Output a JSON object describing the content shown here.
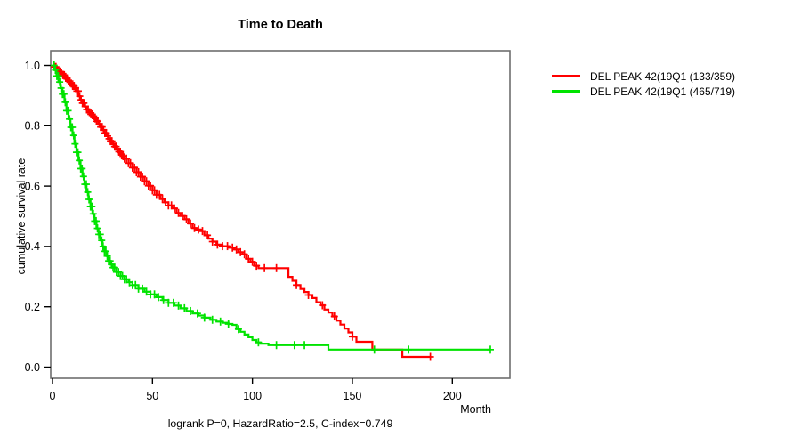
{
  "title": "Time to Death",
  "caption": "logrank P=0, HazardRatio=2.5, C-index=0.749",
  "colors": {
    "red": "#ff0000",
    "green": "#00e300",
    "axis_box": "#6e6e6e",
    "tick": "#000000",
    "text": "#000000"
  },
  "legend": {
    "items": [
      {
        "label": "DEL PEAK 42(19Q1 (133/359)",
        "color": "#ff0000"
      },
      {
        "label": "DEL PEAK 42(19Q1 (465/719)",
        "color": "#00e300"
      }
    ]
  },
  "chart_data": {
    "type": "line",
    "subtype": "kaplan-meier-step-survival",
    "title": "Time to Death",
    "xlabel": "Month",
    "ylabel": "cumulative survival rate",
    "xlim": [
      0,
      220
    ],
    "ylim": [
      0.0,
      1.0
    ],
    "grid": false,
    "legend_position": "right-outside",
    "x_ticks": [
      0,
      50,
      100,
      150,
      200
    ],
    "x_tick_labels": [
      "0",
      "50",
      "100",
      "150",
      "200"
    ],
    "y_ticks": [
      0.0,
      0.2,
      0.4,
      0.6,
      0.8,
      1.0
    ],
    "y_tick_labels": [
      "0.0",
      "0.2",
      "0.4",
      "0.6",
      "0.8",
      "1.0"
    ],
    "series": [
      {
        "name": "DEL PEAK 42(19Q1 (133/359)",
        "color": "#ff0000",
        "events_over_total": "133/359",
        "steps": [
          [
            0,
            1.0
          ],
          [
            1,
            0.995
          ],
          [
            2,
            0.985
          ],
          [
            3,
            0.98
          ],
          [
            4,
            0.975
          ],
          [
            5,
            0.968
          ],
          [
            6,
            0.962
          ],
          [
            7,
            0.955
          ],
          [
            8,
            0.948
          ],
          [
            9,
            0.94
          ],
          [
            10,
            0.932
          ],
          [
            11,
            0.925
          ],
          [
            12,
            0.915
          ],
          [
            13,
            0.898
          ],
          [
            14,
            0.886
          ],
          [
            15,
            0.875
          ],
          [
            16,
            0.864
          ],
          [
            17,
            0.854
          ],
          [
            18,
            0.845
          ],
          [
            19,
            0.838
          ],
          [
            20,
            0.832
          ],
          [
            21,
            0.824
          ],
          [
            22,
            0.815
          ],
          [
            23,
            0.806
          ],
          [
            24,
            0.796
          ],
          [
            25,
            0.786
          ],
          [
            26,
            0.776
          ],
          [
            27,
            0.766
          ],
          [
            28,
            0.757
          ],
          [
            29,
            0.749
          ],
          [
            30,
            0.74
          ],
          [
            31,
            0.731
          ],
          [
            32,
            0.722
          ],
          [
            33,
            0.714
          ],
          [
            34,
            0.706
          ],
          [
            35,
            0.699
          ],
          [
            36,
            0.691
          ],
          [
            38,
            0.676
          ],
          [
            40,
            0.661
          ],
          [
            42,
            0.646
          ],
          [
            44,
            0.631
          ],
          [
            46,
            0.616
          ],
          [
            48,
            0.601
          ],
          [
            50,
            0.586
          ],
          [
            52,
            0.571
          ],
          [
            54,
            0.557
          ],
          [
            56,
            0.546
          ],
          [
            58,
            0.536
          ],
          [
            60,
            0.526
          ],
          [
            62,
            0.511
          ],
          [
            64,
            0.501
          ],
          [
            66,
            0.49
          ],
          [
            68,
            0.476
          ],
          [
            70,
            0.461
          ],
          [
            72,
            0.456
          ],
          [
            74,
            0.451
          ],
          [
            76,
            0.437
          ],
          [
            78,
            0.426
          ],
          [
            80,
            0.416
          ],
          [
            82,
            0.406
          ],
          [
            85,
            0.401
          ],
          [
            88,
            0.396
          ],
          [
            91,
            0.39
          ],
          [
            93,
            0.381
          ],
          [
            95,
            0.374
          ],
          [
            97,
            0.359
          ],
          [
            99,
            0.349
          ],
          [
            101,
            0.336
          ],
          [
            103,
            0.328
          ],
          [
            118,
            0.299
          ],
          [
            120,
            0.286
          ],
          [
            122,
            0.272
          ],
          [
            124,
            0.259
          ],
          [
            126,
            0.249
          ],
          [
            128,
            0.239
          ],
          [
            130,
            0.229
          ],
          [
            132,
            0.215
          ],
          [
            134,
            0.205
          ],
          [
            136,
            0.191
          ],
          [
            138,
            0.181
          ],
          [
            140,
            0.168
          ],
          [
            142,
            0.154
          ],
          [
            144,
            0.141
          ],
          [
            146,
            0.128
          ],
          [
            148,
            0.115
          ],
          [
            150,
            0.101
          ],
          [
            152,
            0.084
          ],
          [
            160,
            0.058
          ],
          [
            175,
            0.034
          ],
          [
            189,
            0.034
          ]
        ],
        "censor_months": [
          1,
          1.7,
          2.4,
          3.1,
          3.8,
          4.5,
          5.2,
          5.9,
          6.6,
          7.3,
          8,
          8.7,
          9.4,
          10.1,
          10.8,
          11.5,
          12.2,
          12.9,
          13.6,
          14.3,
          15,
          15.7,
          16.4,
          17.1,
          17.8,
          18.5,
          19.2,
          19.9,
          20.6,
          21.3,
          22,
          22.7,
          23.4,
          24.1,
          24.8,
          25.5,
          26.2,
          26.9,
          27.6,
          28.3,
          29,
          29.7,
          30.4,
          31.1,
          31.8,
          32.5,
          33.2,
          33.9,
          34.6,
          35.3,
          36,
          37,
          38,
          39,
          40,
          41,
          42,
          43,
          44,
          45,
          46,
          47,
          48,
          49,
          50,
          51,
          52,
          53.5,
          55,
          56.5,
          58,
          59.5,
          61,
          63,
          65,
          67,
          69,
          71,
          73,
          75,
          77.5,
          80,
          82.5,
          85,
          87.5,
          90,
          92,
          94,
          96,
          98,
          100,
          102,
          106,
          112,
          122,
          128,
          135,
          141,
          150,
          189
        ]
      },
      {
        "name": "DEL PEAK 42(19Q1 (465/719)",
        "color": "#00e300",
        "events_over_total": "465/719",
        "steps": [
          [
            0,
            1.0
          ],
          [
            1,
            0.985
          ],
          [
            2,
            0.965
          ],
          [
            3,
            0.945
          ],
          [
            4,
            0.925
          ],
          [
            5,
            0.905
          ],
          [
            6,
            0.878
          ],
          [
            7,
            0.85
          ],
          [
            8,
            0.822
          ],
          [
            9,
            0.795
          ],
          [
            10,
            0.768
          ],
          [
            11,
            0.74
          ],
          [
            12,
            0.712
          ],
          [
            13,
            0.685
          ],
          [
            14,
            0.658
          ],
          [
            15,
            0.632
          ],
          [
            16,
            0.606
          ],
          [
            17,
            0.58
          ],
          [
            18,
            0.556
          ],
          [
            19,
            0.532
          ],
          [
            20,
            0.508
          ],
          [
            21,
            0.484
          ],
          [
            22,
            0.46
          ],
          [
            23,
            0.44
          ],
          [
            24,
            0.42
          ],
          [
            25,
            0.4
          ],
          [
            26,
            0.384
          ],
          [
            27,
            0.368
          ],
          [
            28,
            0.352
          ],
          [
            29,
            0.34
          ],
          [
            30,
            0.33
          ],
          [
            32,
            0.315
          ],
          [
            34,
            0.302
          ],
          [
            36,
            0.291
          ],
          [
            38,
            0.281
          ],
          [
            40,
            0.272
          ],
          [
            43,
            0.26
          ],
          [
            46,
            0.25
          ],
          [
            49,
            0.241
          ],
          [
            52,
            0.232
          ],
          [
            55,
            0.222
          ],
          [
            58,
            0.213
          ],
          [
            61,
            0.204
          ],
          [
            64,
            0.195
          ],
          [
            67,
            0.186
          ],
          [
            70,
            0.178
          ],
          [
            73,
            0.171
          ],
          [
            76,
            0.164
          ],
          [
            79,
            0.157
          ],
          [
            82,
            0.151
          ],
          [
            85,
            0.147
          ],
          [
            88,
            0.143
          ],
          [
            90,
            0.14
          ],
          [
            92,
            0.126
          ],
          [
            94,
            0.117
          ],
          [
            96,
            0.108
          ],
          [
            98,
            0.099
          ],
          [
            100,
            0.09
          ],
          [
            102,
            0.082
          ],
          [
            104,
            0.078
          ],
          [
            108,
            0.073
          ],
          [
            138,
            0.058
          ],
          [
            219,
            0.058
          ]
        ],
        "censor_months": [
          0.8,
          1.5,
          2.2,
          2.9,
          3.6,
          4.3,
          5,
          5.7,
          6.4,
          7.1,
          7.8,
          8.5,
          9.2,
          9.9,
          10.6,
          11.3,
          12,
          12.7,
          13.4,
          14.1,
          14.8,
          15.5,
          16.2,
          16.9,
          17.6,
          18.3,
          19,
          19.7,
          20.4,
          21.1,
          21.8,
          22.5,
          23.2,
          23.9,
          24.6,
          25.3,
          26,
          26.7,
          27.4,
          28.1,
          28.8,
          29.5,
          30.3,
          31.1,
          32,
          33,
          34,
          35,
          36,
          37,
          38.5,
          40,
          41.5,
          43,
          45,
          47,
          49,
          51,
          53,
          55.5,
          58,
          60.5,
          63,
          66,
          69,
          72.5,
          76,
          80,
          84,
          88,
          93,
          103,
          112,
          121,
          126,
          161,
          178,
          219
        ]
      }
    ]
  }
}
